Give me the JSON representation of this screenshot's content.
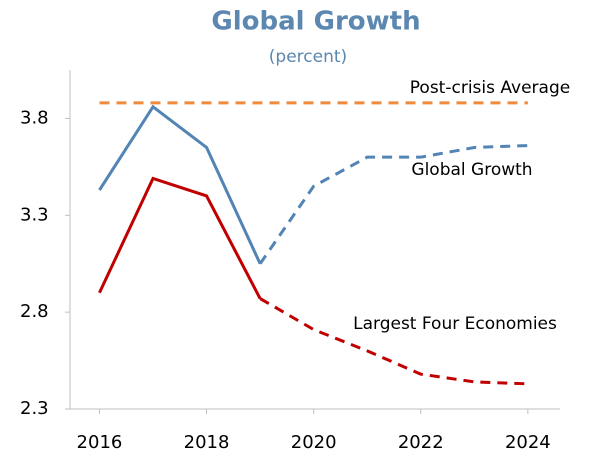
{
  "chart_data": {
    "type": "line",
    "title": "Global Growth",
    "subtitle": "(percent)",
    "x": [
      2016,
      2017,
      2018,
      2019,
      2020,
      2021,
      2022,
      2023,
      2024
    ],
    "xlim": [
      2015.45,
      2024.6
    ],
    "xticks": [
      2016,
      2018,
      2020,
      2022,
      2024
    ],
    "ylim": [
      2.3,
      4.05
    ],
    "yticks": [
      2.3,
      2.8,
      3.3,
      3.8
    ],
    "series": [
      {
        "name": "Post-crisis Average",
        "color": "#f08a3c",
        "dashed_from": 2016,
        "values": [
          3.88,
          3.88,
          3.88,
          3.88,
          3.88,
          3.88,
          3.88,
          3.88,
          3.88
        ]
      },
      {
        "name": "Global Growth",
        "color": "#5284b4",
        "dashed_from": 2019,
        "values": [
          3.43,
          3.86,
          3.65,
          3.05,
          3.45,
          3.6,
          3.6,
          3.65,
          3.66
        ]
      },
      {
        "name": "Largest Four Economies",
        "color": "#c00000",
        "dashed_from": 2019,
        "values": [
          2.9,
          3.49,
          3.4,
          2.87,
          2.71,
          2.6,
          2.48,
          2.44,
          2.43
        ]
      }
    ]
  }
}
